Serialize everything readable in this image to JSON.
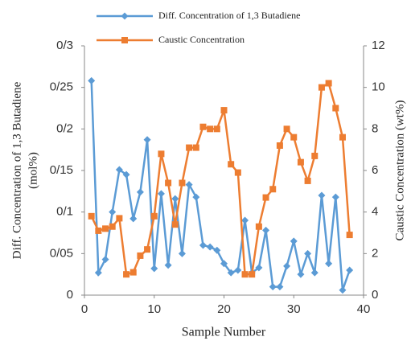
{
  "chart_data": {
    "type": "line",
    "xlabel": "Sample Number",
    "ylabel": [
      "Diff. Concentration of 1,3 Butadiene",
      "(mol%)"
    ],
    "y2label": "Caustic Concentration (wt%)",
    "x": [
      1,
      2,
      3,
      4,
      5,
      6,
      7,
      8,
      9,
      10,
      11,
      12,
      13,
      14,
      15,
      16,
      17,
      18,
      19,
      20,
      21,
      22,
      23,
      24,
      25,
      26,
      27,
      28,
      29,
      30,
      31,
      32,
      33,
      34,
      35,
      36,
      37,
      38
    ],
    "series": [
      {
        "name": "Diff. Concentration of 1,3 Butadiene",
        "color": "#5b9bd5",
        "marker": "diamond",
        "axis": "y",
        "values": [
          0.258,
          0.027,
          0.043,
          0.1,
          0.151,
          0.145,
          0.092,
          0.124,
          0.187,
          0.032,
          0.122,
          0.036,
          0.116,
          0.05,
          0.133,
          0.118,
          0.06,
          0.058,
          0.054,
          0.038,
          0.027,
          0.03,
          0.09,
          0.027,
          0.033,
          0.078,
          0.01,
          0.01,
          0.035,
          0.065,
          0.025,
          0.05,
          0.027,
          0.12,
          0.038,
          0.118,
          0.006,
          0.03
        ]
      },
      {
        "name": "Caustic Concentration",
        "color": "#ed7d31",
        "marker": "square",
        "axis": "y2",
        "values": [
          3.8,
          3.1,
          3.2,
          3.3,
          3.7,
          1.0,
          1.1,
          1.9,
          2.2,
          3.8,
          6.8,
          5.4,
          3.4,
          5.4,
          7.1,
          7.1,
          8.1,
          8.0,
          8.0,
          8.9,
          6.3,
          5.9,
          1.0,
          1.0,
          3.3,
          4.7,
          5.1,
          7.2,
          8.0,
          7.6,
          6.4,
          5.5,
          6.7,
          10.0,
          10.2,
          9.0,
          7.6,
          2.9
        ]
      }
    ],
    "xlim": [
      0,
      40
    ],
    "xticks": [
      0,
      10,
      20,
      30,
      40
    ],
    "ylim": [
      0,
      0.3
    ],
    "yticks": [
      0,
      {
        "value": 0.05,
        "label": "0/05"
      },
      {
        "value": 0.1,
        "label": "0/1"
      },
      {
        "value": 0.15,
        "label": "0/15"
      },
      {
        "value": 0.2,
        "label": "0/2"
      },
      {
        "value": 0.25,
        "label": "0/25"
      },
      {
        "value": 0.3,
        "label": "0/3"
      }
    ],
    "y2lim": [
      0,
      12
    ],
    "y2ticks": [
      0,
      2,
      4,
      6,
      8,
      10,
      12
    ],
    "grid": false
  }
}
